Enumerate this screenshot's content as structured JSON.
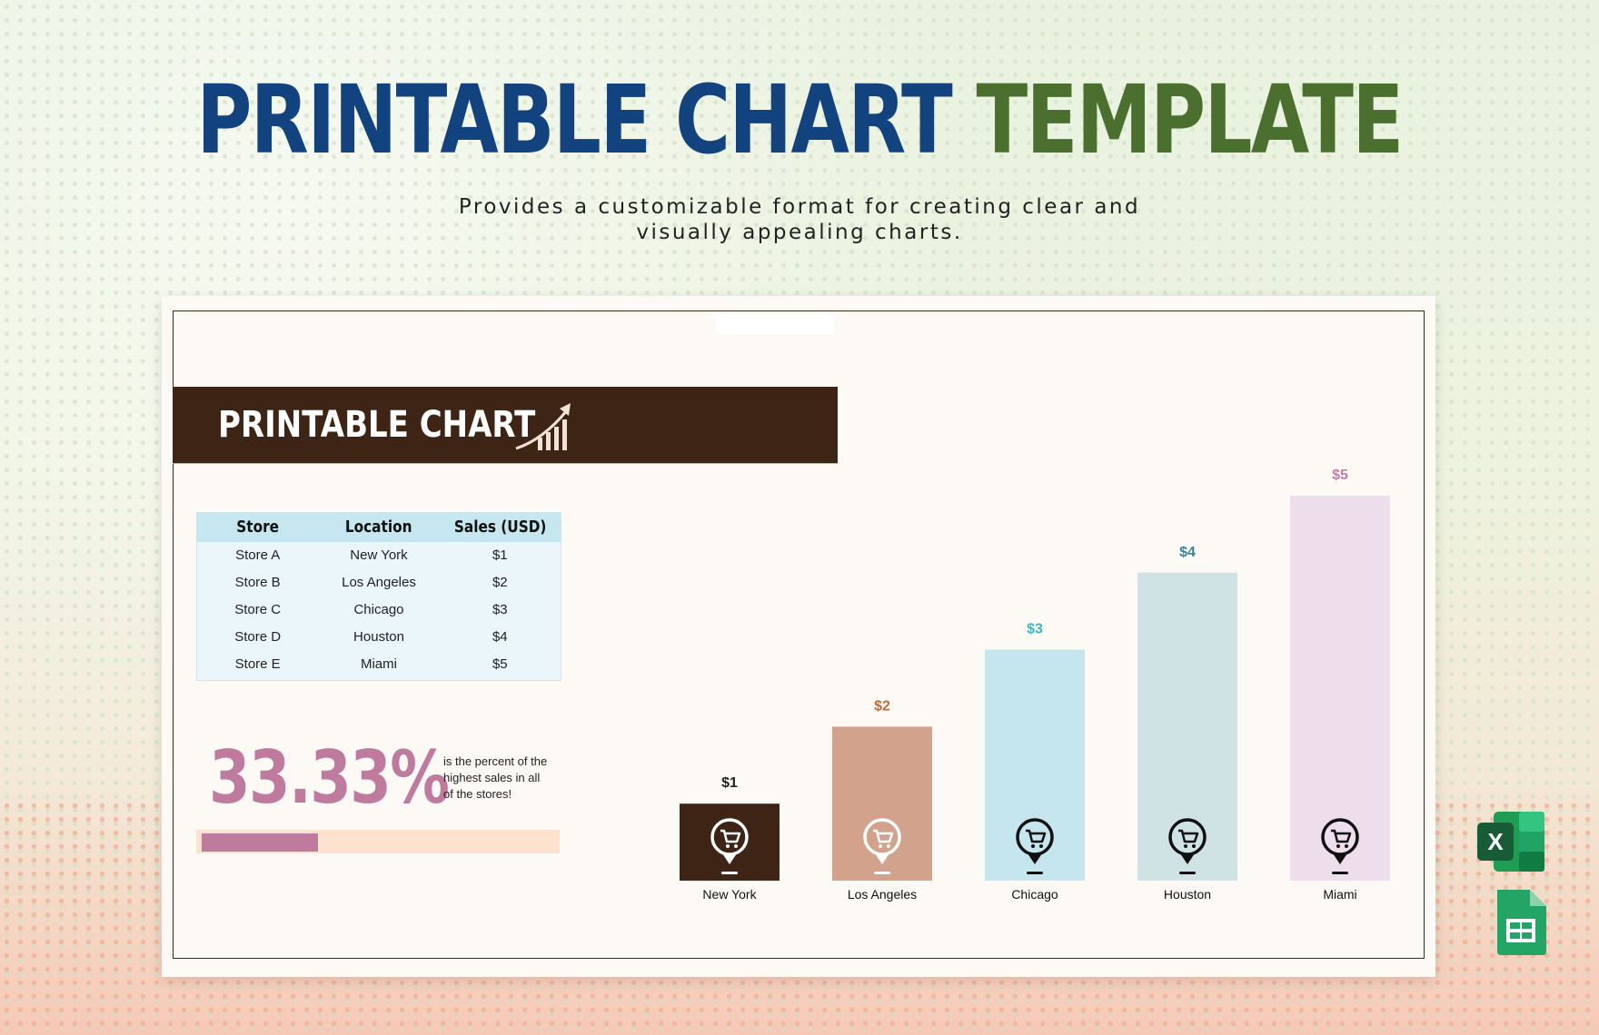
{
  "header": {
    "title_part1": "PRINTABLE CHART",
    "title_part2": "TEMPLATE",
    "subtitle": "Provides a customizable format for creating clear and visually appealing charts."
  },
  "card": {
    "banner_title": "PRINTABLE CHART",
    "table": {
      "headers": [
        "Store",
        "Location",
        "Sales (USD)"
      ],
      "rows": [
        [
          "Store A",
          "New York",
          "$1"
        ],
        [
          "Store B",
          "Los Angeles",
          "$2"
        ],
        [
          "Store C",
          "Chicago",
          "$3"
        ],
        [
          "Store D",
          "Houston",
          "$4"
        ],
        [
          "Store E",
          "Miami",
          "$5"
        ]
      ]
    },
    "highlight": {
      "percent": "33.33%",
      "description": "is the percent of the highest sales in all of the stores!",
      "progress_fraction": 0.33
    }
  },
  "chart_data": {
    "type": "bar",
    "categories": [
      "New York",
      "Los Angeles",
      "Chicago",
      "Houston",
      "Miami"
    ],
    "values": [
      1,
      2,
      3,
      4,
      5
    ],
    "data_labels": [
      "$1",
      "$2",
      "$3",
      "$4",
      "$5"
    ],
    "bar_colors": [
      "#3e2414",
      "#d3a28d",
      "#c5e6ee",
      "#cfe3e5",
      "#eeddeb"
    ],
    "label_colors": [
      "#222222",
      "#b86d3a",
      "#3fb6c2",
      "#3f7f98",
      "#c27ea6"
    ],
    "icon_colors": [
      "#ffffff",
      "#ffffff",
      "#111111",
      "#111111",
      "#111111"
    ],
    "bar_icon": "cart-pin-icon",
    "ylim": [
      0,
      5
    ],
    "grid": false,
    "legend": "none",
    "title": "",
    "xlabel": "",
    "ylabel": ""
  },
  "icons": {
    "banner": "growth-chart-icon",
    "excel": "excel-logo-icon",
    "sheets": "google-sheets-logo-icon"
  }
}
